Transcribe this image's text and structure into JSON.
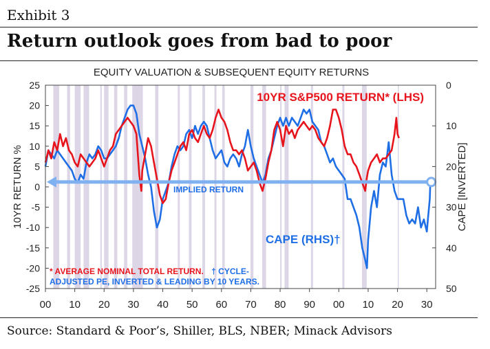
{
  "exhibit_label": "Exhibit 3",
  "headline": "Return outlook goes from bad to poor",
  "source": "Source: Standard & Poor’s, Shiller, BLS, NBER; Minack Advisors",
  "colors": {
    "return_line": "#e8141c",
    "cape_line": "#1e6ee6",
    "implied_line": "#7fb0f0",
    "recession_shading": "#dcd6e6",
    "note_red": "#e8141c",
    "note_blue": "#1e6ee6"
  },
  "chart_data": {
    "type": "line",
    "title": "EQUITY VALUATION & SUBSEQUENT EQUITY RETURNS",
    "ylabel_left": "10YR RETURN %",
    "ylabel_right": "CAPE [INVERTED]",
    "ylim_left": [
      -25,
      25
    ],
    "ylim_right": [
      50,
      0
    ],
    "xlim": [
      1900,
      2033
    ],
    "yticks_left": [
      "25",
      "20",
      "15",
      "10",
      "5",
      "0",
      "-5",
      "-10",
      "-15",
      "-20",
      "-25"
    ],
    "yticks_right": [
      "0",
      "10",
      "20",
      "30",
      "40",
      "50"
    ],
    "xticks": [
      {
        "year": 1900,
        "label": "00"
      },
      {
        "year": 1910,
        "label": "10"
      },
      {
        "year": 1920,
        "label": "20"
      },
      {
        "year": 1930,
        "label": "30"
      },
      {
        "year": 1940,
        "label": "40"
      },
      {
        "year": 1950,
        "label": "50"
      },
      {
        "year": 1960,
        "label": "60"
      },
      {
        "year": 1970,
        "label": "70"
      },
      {
        "year": 1980,
        "label": "80"
      },
      {
        "year": 1990,
        "label": "90"
      },
      {
        "year": 2000,
        "label": "00"
      },
      {
        "year": 2010,
        "label": "10"
      },
      {
        "year": 2020,
        "label": "20"
      },
      {
        "year": 2030,
        "label": "30"
      }
    ],
    "legend_position": "top-right",
    "grid": false,
    "series": [
      {
        "name": "10YR S&P500 RETURN* (LHS)",
        "axis": "left",
        "points": [
          [
            1900,
            6
          ],
          [
            1901,
            9
          ],
          [
            1902,
            7
          ],
          [
            1903,
            11
          ],
          [
            1904,
            9
          ],
          [
            1905,
            13
          ],
          [
            1906,
            10
          ],
          [
            1907,
            12
          ],
          [
            1908,
            9
          ],
          [
            1909,
            8
          ],
          [
            1910,
            6
          ],
          [
            1911,
            5
          ],
          [
            1912,
            8
          ],
          [
            1913,
            7
          ],
          [
            1914,
            6
          ],
          [
            1915,
            5
          ],
          [
            1916,
            6
          ],
          [
            1917,
            7
          ],
          [
            1918,
            9
          ],
          [
            1919,
            7
          ],
          [
            1920,
            5
          ],
          [
            1921,
            7
          ],
          [
            1922,
            9
          ],
          [
            1923,
            10
          ],
          [
            1924,
            13
          ],
          [
            1925,
            14
          ],
          [
            1926,
            15
          ],
          [
            1927,
            16
          ],
          [
            1928,
            17
          ],
          [
            1929,
            16
          ],
          [
            1930,
            15
          ],
          [
            1931,
            13
          ],
          [
            1932,
            3
          ],
          [
            1932.7,
            -1
          ],
          [
            1933,
            4
          ],
          [
            1934,
            8
          ],
          [
            1935,
            12
          ],
          [
            1936,
            10
          ],
          [
            1937,
            6
          ],
          [
            1938,
            2
          ],
          [
            1939,
            -2
          ],
          [
            1940,
            -4
          ],
          [
            1941,
            -3
          ],
          [
            1942,
            1
          ],
          [
            1943,
            4
          ],
          [
            1944,
            6
          ],
          [
            1945,
            8
          ],
          [
            1946,
            10
          ],
          [
            1947,
            11
          ],
          [
            1948,
            9
          ],
          [
            1949,
            13
          ],
          [
            1950,
            14
          ],
          [
            1951,
            12
          ],
          [
            1952,
            11
          ],
          [
            1953,
            13
          ],
          [
            1954,
            15
          ],
          [
            1955,
            13
          ],
          [
            1956,
            12
          ],
          [
            1957,
            14
          ],
          [
            1958,
            17
          ],
          [
            1959,
            19
          ],
          [
            1960,
            17
          ],
          [
            1961,
            16
          ],
          [
            1962,
            14
          ],
          [
            1963,
            11
          ],
          [
            1964,
            9
          ],
          [
            1965,
            9
          ],
          [
            1966,
            8
          ],
          [
            1967,
            9
          ],
          [
            1968,
            7
          ],
          [
            1969,
            4
          ],
          [
            1970,
            5
          ],
          [
            1971,
            6
          ],
          [
            1972,
            4
          ],
          [
            1973,
            1
          ],
          [
            1974,
            -1
          ],
          [
            1975,
            2
          ],
          [
            1976,
            6
          ],
          [
            1977,
            9
          ],
          [
            1978,
            14
          ],
          [
            1979,
            16
          ],
          [
            1980,
            14
          ],
          [
            1981,
            10
          ],
          [
            1982,
            15
          ],
          [
            1983,
            13
          ],
          [
            1984,
            14
          ],
          [
            1985,
            12
          ],
          [
            1986,
            14
          ],
          [
            1987,
            15
          ],
          [
            1988,
            16
          ],
          [
            1989,
            15
          ],
          [
            1990,
            14
          ],
          [
            1991,
            15
          ],
          [
            1992,
            14
          ],
          [
            1993,
            12
          ],
          [
            1994,
            11
          ],
          [
            1995,
            10
          ],
          [
            1996,
            12
          ],
          [
            1997,
            15
          ],
          [
            1998,
            19
          ],
          [
            1999,
            19
          ],
          [
            2000,
            17
          ],
          [
            2001,
            14
          ],
          [
            2002,
            10
          ],
          [
            2003,
            8
          ],
          [
            2004,
            8
          ],
          [
            2005,
            6
          ],
          [
            2006,
            5
          ],
          [
            2007,
            3
          ],
          [
            2008,
            1
          ],
          [
            2009,
            -1
          ],
          [
            2009.5,
            2
          ],
          [
            2010,
            4
          ],
          [
            2011,
            6
          ],
          [
            2012,
            7
          ],
          [
            2013,
            8
          ],
          [
            2014,
            6
          ],
          [
            2015,
            7
          ],
          [
            2016,
            7
          ],
          [
            2017,
            8
          ],
          [
            2018,
            9
          ],
          [
            2019,
            13
          ],
          [
            2019.6,
            17
          ],
          [
            2020,
            13
          ],
          [
            2020.5,
            12
          ]
        ]
      },
      {
        "name": "CAPE (RHS)†",
        "axis": "right",
        "points": [
          [
            1900,
            20
          ],
          [
            1901,
            16
          ],
          [
            1902,
            17
          ],
          [
            1903,
            18
          ],
          [
            1904,
            16
          ],
          [
            1905,
            17
          ],
          [
            1906,
            18
          ],
          [
            1907,
            19
          ],
          [
            1908,
            20
          ],
          [
            1909,
            21
          ],
          [
            1910,
            23
          ],
          [
            1911,
            24
          ],
          [
            1912,
            22
          ],
          [
            1913,
            23
          ],
          [
            1914,
            19
          ],
          [
            1915,
            17
          ],
          [
            1916,
            18
          ],
          [
            1917,
            17
          ],
          [
            1918,
            15
          ],
          [
            1919,
            16
          ],
          [
            1920,
            18
          ],
          [
            1921,
            18
          ],
          [
            1922,
            17
          ],
          [
            1923,
            16
          ],
          [
            1924,
            15
          ],
          [
            1925,
            13
          ],
          [
            1926,
            10
          ],
          [
            1927,
            8
          ],
          [
            1928,
            6
          ],
          [
            1929,
            5
          ],
          [
            1930,
            5
          ],
          [
            1931,
            7
          ],
          [
            1932,
            12
          ],
          [
            1933,
            15
          ],
          [
            1934,
            18
          ],
          [
            1935,
            22
          ],
          [
            1936,
            25
          ],
          [
            1937,
            31
          ],
          [
            1938,
            35
          ],
          [
            1939,
            33
          ],
          [
            1940,
            28
          ],
          [
            1941,
            26
          ],
          [
            1942,
            24
          ],
          [
            1943,
            20
          ],
          [
            1944,
            17
          ],
          [
            1945,
            15
          ],
          [
            1946,
            16
          ],
          [
            1947,
            15
          ],
          [
            1948,
            12
          ],
          [
            1949,
            11
          ],
          [
            1950,
            13
          ],
          [
            1951,
            10
          ],
          [
            1952,
            12
          ],
          [
            1953,
            10
          ],
          [
            1954,
            9
          ],
          [
            1955,
            10
          ],
          [
            1956,
            13
          ],
          [
            1957,
            16
          ],
          [
            1958,
            18
          ],
          [
            1959,
            17
          ],
          [
            1960,
            16
          ],
          [
            1961,
            19
          ],
          [
            1962,
            20
          ],
          [
            1963,
            18
          ],
          [
            1964,
            17
          ],
          [
            1965,
            18
          ],
          [
            1966,
            20
          ],
          [
            1967,
            17
          ],
          [
            1968,
            15
          ],
          [
            1969,
            11
          ],
          [
            1970,
            15
          ],
          [
            1971,
            18
          ],
          [
            1972,
            20
          ],
          [
            1973,
            22
          ],
          [
            1974,
            24
          ],
          [
            1975,
            22
          ],
          [
            1976,
            18
          ],
          [
            1977,
            16
          ],
          [
            1978,
            13
          ],
          [
            1979,
            10
          ],
          [
            1980,
            8
          ],
          [
            1981,
            10
          ],
          [
            1982,
            8
          ],
          [
            1983,
            10
          ],
          [
            1984,
            8
          ],
          [
            1985,
            9
          ],
          [
            1986,
            10
          ],
          [
            1987,
            8
          ],
          [
            1988,
            6
          ],
          [
            1989,
            7
          ],
          [
            1990,
            6
          ],
          [
            1991,
            9
          ],
          [
            1992,
            10
          ],
          [
            1993,
            11
          ],
          [
            1994,
            14
          ],
          [
            1995,
            15
          ],
          [
            1996,
            17
          ],
          [
            1997,
            19
          ],
          [
            1998,
            18
          ],
          [
            1999,
            20
          ],
          [
            2000,
            21
          ],
          [
            2001,
            22
          ],
          [
            2002,
            23
          ],
          [
            2003,
            28
          ],
          [
            2004,
            28
          ],
          [
            2005,
            30
          ],
          [
            2006,
            32
          ],
          [
            2007,
            35
          ],
          [
            2008,
            40
          ],
          [
            2009,
            43
          ],
          [
            2009.6,
            45
          ],
          [
            2010,
            38
          ],
          [
            2010.5,
            34
          ],
          [
            2011,
            30
          ],
          [
            2012,
            26
          ],
          [
            2013,
            30
          ],
          [
            2014,
            22
          ],
          [
            2015,
            19
          ],
          [
            2016,
            20
          ],
          [
            2017,
            14
          ],
          [
            2018,
            22
          ],
          [
            2019,
            26
          ],
          [
            2020,
            28
          ],
          [
            2021,
            28
          ],
          [
            2022,
            28
          ],
          [
            2023,
            32
          ],
          [
            2024,
            34
          ],
          [
            2025,
            33
          ],
          [
            2026,
            34
          ],
          [
            2027,
            30
          ],
          [
            2028,
            35
          ],
          [
            2029,
            33
          ],
          [
            2030,
            36
          ],
          [
            2030.5,
            32
          ],
          [
            2031,
            28
          ],
          [
            2031.2,
            24
          ]
        ]
      }
    ],
    "implied_return": {
      "label": "IMPLIED RETURN",
      "value": 1.2,
      "x_start": 1900,
      "x_end": 2031.5
    },
    "recessions": [
      [
        1902.7,
        1904.7
      ],
      [
        1907.4,
        1908.4
      ],
      [
        1910.0,
        1912.0
      ],
      [
        1913.0,
        1914.9
      ],
      [
        1918.7,
        1919.2
      ],
      [
        1920.0,
        1921.5
      ],
      [
        1923.4,
        1924.5
      ],
      [
        1926.8,
        1927.9
      ],
      [
        1929.6,
        1933.2
      ],
      [
        1937.4,
        1938.5
      ],
      [
        1945.1,
        1945.8
      ],
      [
        1948.9,
        1949.8
      ],
      [
        1953.5,
        1954.4
      ],
      [
        1957.6,
        1958.3
      ],
      [
        1960.3,
        1961.1
      ],
      [
        1969.9,
        1970.9
      ],
      [
        1973.9,
        1975.2
      ],
      [
        1980.0,
        1980.5
      ],
      [
        1981.5,
        1982.9
      ],
      [
        1990.5,
        1991.2
      ],
      [
        2001.2,
        2001.9
      ],
      [
        2007.9,
        2009.5
      ],
      [
        2020.1,
        2020.4
      ]
    ],
    "annotations": [
      {
        "text": "10YR S&P500 RETURN* (LHS)",
        "color": "red"
      },
      {
        "text": "CAPE (RHS)†",
        "color": "blue"
      },
      {
        "text": "IMPLIED RETURN",
        "color": "blue"
      }
    ],
    "footnotes": {
      "line1_red": "* AVERAGE NOMINAL TOTAL RETURN.",
      "line1_blue": "† CYCLE-",
      "line2_blue": "ADJUSTED PE, INVERTED & LEADING BY 10 YEARS."
    }
  }
}
